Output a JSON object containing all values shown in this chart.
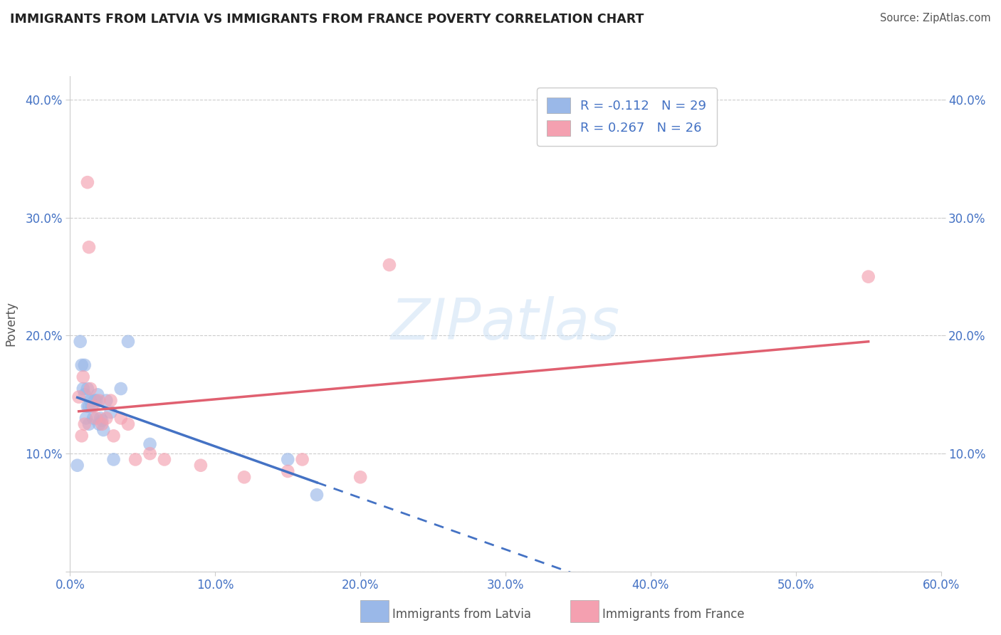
{
  "title": "IMMIGRANTS FROM LATVIA VS IMMIGRANTS FROM FRANCE POVERTY CORRELATION CHART",
  "source": "Source: ZipAtlas.com",
  "ylabel": "Poverty",
  "xlim": [
    0.0,
    0.6
  ],
  "ylim": [
    0.0,
    0.42
  ],
  "x_ticks": [
    0.0,
    0.1,
    0.2,
    0.3,
    0.4,
    0.5,
    0.6
  ],
  "x_tick_labels": [
    "0.0%",
    "10.0%",
    "20.0%",
    "30.0%",
    "40.0%",
    "50.0%",
    "60.0%"
  ],
  "y_ticks": [
    0.0,
    0.1,
    0.2,
    0.3,
    0.4
  ],
  "y_tick_labels": [
    "",
    "10.0%",
    "20.0%",
    "30.0%",
    "40.0%"
  ],
  "right_y_tick_labels": [
    "10.0%",
    "20.0%",
    "30.0%",
    "40.0%"
  ],
  "legend_r_latvia": "-0.112",
  "legend_n_latvia": "29",
  "legend_r_france": "0.267",
  "legend_n_france": "26",
  "latvia_color": "#9ab8e8",
  "france_color": "#f4a0b0",
  "latvia_line_color": "#4472c4",
  "france_line_color": "#e06070",
  "background_color": "#ffffff",
  "grid_color": "#cccccc",
  "title_color": "#222222",
  "axis_label_color": "#555555",
  "tick_color": "#4472c4",
  "watermark_text": "ZIPatlas",
  "latvia_x": [
    0.005,
    0.007,
    0.008,
    0.009,
    0.01,
    0.01,
    0.011,
    0.012,
    0.012,
    0.013,
    0.013,
    0.014,
    0.015,
    0.016,
    0.017,
    0.018,
    0.019,
    0.02,
    0.021,
    0.022,
    0.023,
    0.025,
    0.028,
    0.03,
    0.035,
    0.04,
    0.055,
    0.15,
    0.17
  ],
  "latvia_y": [
    0.09,
    0.195,
    0.175,
    0.155,
    0.175,
    0.15,
    0.13,
    0.14,
    0.155,
    0.125,
    0.14,
    0.145,
    0.14,
    0.13,
    0.145,
    0.145,
    0.15,
    0.125,
    0.13,
    0.128,
    0.12,
    0.145,
    0.135,
    0.095,
    0.155,
    0.195,
    0.108,
    0.095,
    0.065
  ],
  "france_x": [
    0.006,
    0.008,
    0.009,
    0.01,
    0.012,
    0.013,
    0.014,
    0.016,
    0.018,
    0.02,
    0.022,
    0.025,
    0.028,
    0.03,
    0.035,
    0.04,
    0.045,
    0.055,
    0.065,
    0.09,
    0.12,
    0.15,
    0.16,
    0.2,
    0.22,
    0.55
  ],
  "france_y": [
    0.148,
    0.115,
    0.165,
    0.125,
    0.33,
    0.275,
    0.155,
    0.14,
    0.13,
    0.145,
    0.125,
    0.13,
    0.145,
    0.115,
    0.13,
    0.125,
    0.095,
    0.1,
    0.095,
    0.09,
    0.08,
    0.085,
    0.095,
    0.08,
    0.26,
    0.25
  ]
}
